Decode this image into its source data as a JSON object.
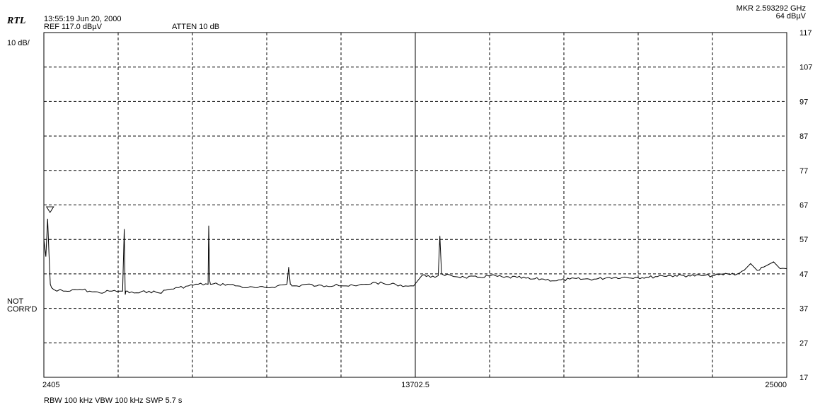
{
  "header": {
    "brand": "RTL",
    "timestamp": "13:55:19 Jun 20, 2000",
    "ref_level": "REF 117.0 dBµV",
    "attenuation": "ATTEN 10  dB",
    "marker_freq": "MKR  2.593292 GHz",
    "marker_level": "64 dBµV"
  },
  "scale_label": "10 dB/",
  "status": {
    "line1": "NOT",
    "line2": "CORR'D"
  },
  "footer": "RBW 100 kHz  VBW 100 kHz   SWP 5.7 s",
  "colors": {
    "trace": "#000000",
    "grid": "#000000",
    "background": "#ffffff"
  },
  "chart_data": {
    "type": "line",
    "title": "",
    "xlabel": "",
    "ylabel": "",
    "xlim": [
      2405,
      25000
    ],
    "ylim": [
      17,
      117
    ],
    "x_tick_labels": [
      {
        "value": 2405,
        "label": "2405"
      },
      {
        "value": 13702.5,
        "label": "13702.5"
      },
      {
        "value": 25000,
        "label": "25000"
      }
    ],
    "y_ticks": [
      117,
      107,
      97,
      87,
      77,
      67,
      57,
      47,
      37,
      27,
      17
    ],
    "grid": true,
    "marker": {
      "x": 2593,
      "y": 64
    },
    "series": [
      {
        "x": [
          2405,
          2465,
          2520,
          2560,
          2600,
          2640,
          2700,
          2800,
          2900,
          3000,
          3200,
          3500,
          3800,
          4100,
          4400,
          4700,
          4800,
          4850,
          4880,
          4900,
          4950,
          5000,
          5300,
          5600,
          5900,
          6200,
          6500,
          6800,
          7100,
          7400,
          7420,
          7450,
          7470,
          7500,
          7700,
          8000,
          8300,
          8600,
          8900,
          9200,
          9500,
          9800,
          9850,
          9900,
          9920,
          9950,
          10100,
          10400,
          10700,
          11000,
          11300,
          11600,
          11900,
          12200,
          12500,
          12800,
          13100,
          13400,
          13650,
          13900,
          14100,
          14300,
          14400,
          14450,
          14500,
          14600,
          14800,
          15200,
          15600,
          16000,
          16400,
          16800,
          17200,
          17600,
          18000,
          18400,
          18800,
          19200,
          19600,
          20000,
          20400,
          20800,
          21200,
          21600,
          22000,
          22400,
          22800,
          23200,
          23500,
          23700,
          23900,
          24100,
          24300,
          24600,
          24800,
          25000
        ],
        "y": [
          57,
          52,
          63,
          53,
          44,
          43,
          42.5,
          42,
          42.5,
          42,
          42,
          42.5,
          42,
          41.5,
          42,
          42,
          42,
          60,
          41,
          42,
          42,
          41.5,
          41.5,
          42,
          41.5,
          42.5,
          43,
          43.5,
          44,
          44,
          61,
          45,
          44,
          44,
          44,
          44,
          43.5,
          43,
          43,
          43,
          43.5,
          44,
          49,
          44,
          44,
          43.5,
          43.5,
          44,
          43.5,
          43.5,
          44,
          43.5,
          43.5,
          44,
          44.5,
          44,
          44,
          43.5,
          43.5,
          46.5,
          46.5,
          46,
          46.5,
          58,
          47,
          46.5,
          46.5,
          46,
          46,
          46.5,
          46,
          46,
          45.5,
          45.5,
          45,
          45.5,
          45.5,
          45.5,
          46,
          46,
          46,
          46,
          46.5,
          46.5,
          46.5,
          46.5,
          46.5,
          47,
          47,
          48,
          50,
          48,
          49,
          50.5,
          48.5,
          48.5
        ]
      }
    ]
  }
}
